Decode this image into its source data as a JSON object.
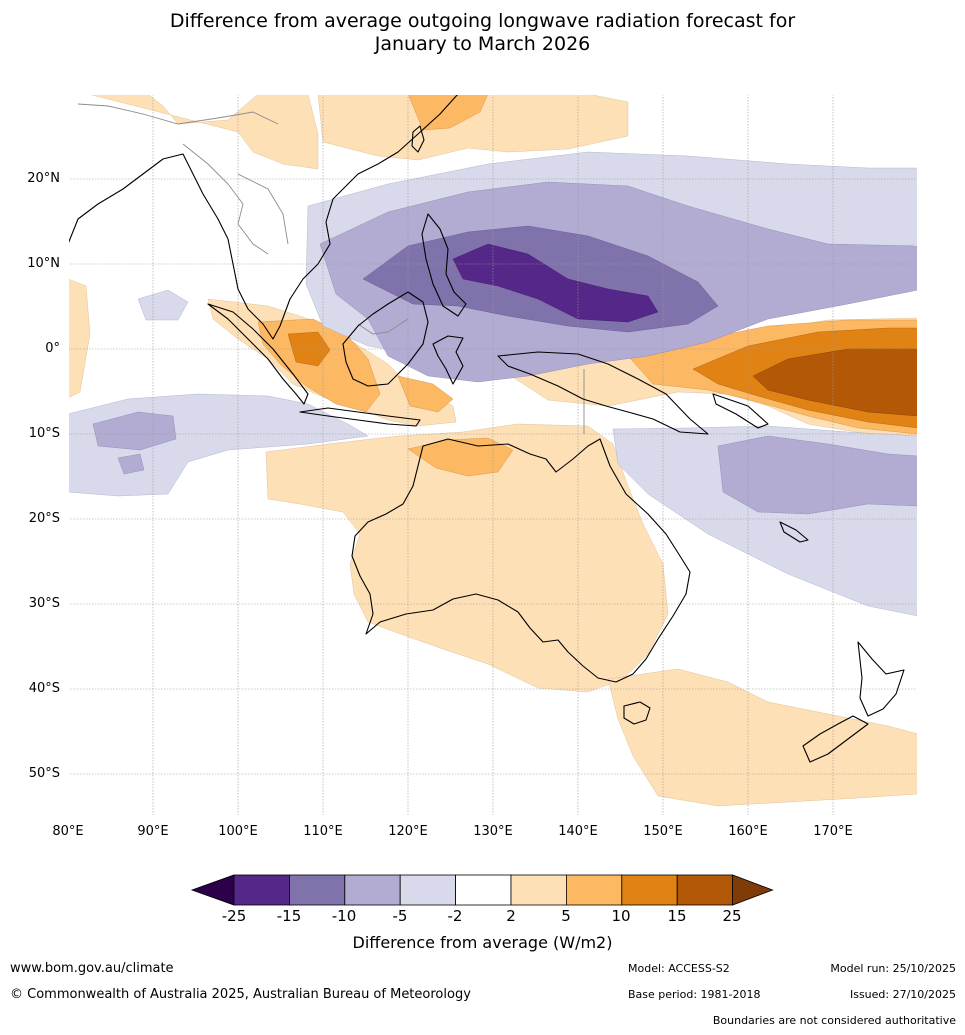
{
  "title_line1": "Difference from average outgoing longwave radiation forecast for",
  "title_line2": "January to March 2026",
  "lat_labels": [
    "20°N",
    "10°N",
    "0°",
    "10°S",
    "20°S",
    "30°S",
    "40°S",
    "50°S"
  ],
  "lon_labels": [
    "80°E",
    "90°E",
    "100°E",
    "110°E",
    "120°E",
    "130°E",
    "140°E",
    "150°E",
    "160°E",
    "170°E"
  ],
  "map_extent": {
    "lon_min": 80,
    "lon_max": 180,
    "lat_min": -55,
    "lat_max": 30
  },
  "colorbar": {
    "title": "Difference from average (W/m2)",
    "ticks": [
      "-25",
      "-15",
      "-10",
      "-5",
      "-2",
      "2",
      "5",
      "10",
      "15",
      "25"
    ],
    "colors": [
      "#2d004b",
      "#542788",
      "#8073ac",
      "#b2abd2",
      "#d8daeb",
      "#ffffff",
      "#fee0b6",
      "#fdb863",
      "#e08214",
      "#b35806",
      "#7f3b08"
    ]
  },
  "footer": {
    "website": "www.bom.gov.au/climate",
    "copyright": "© Commonwealth of Australia 2025, Australian Bureau of Meteorology",
    "model": "Model: ACCESS-S2",
    "base_period": "Base period: 1981-2018",
    "model_run": "Model run: 25/10/2025",
    "issued": "Issued: 27/10/2025",
    "disclaimer": "Boundaries are not considered authoritative"
  }
}
